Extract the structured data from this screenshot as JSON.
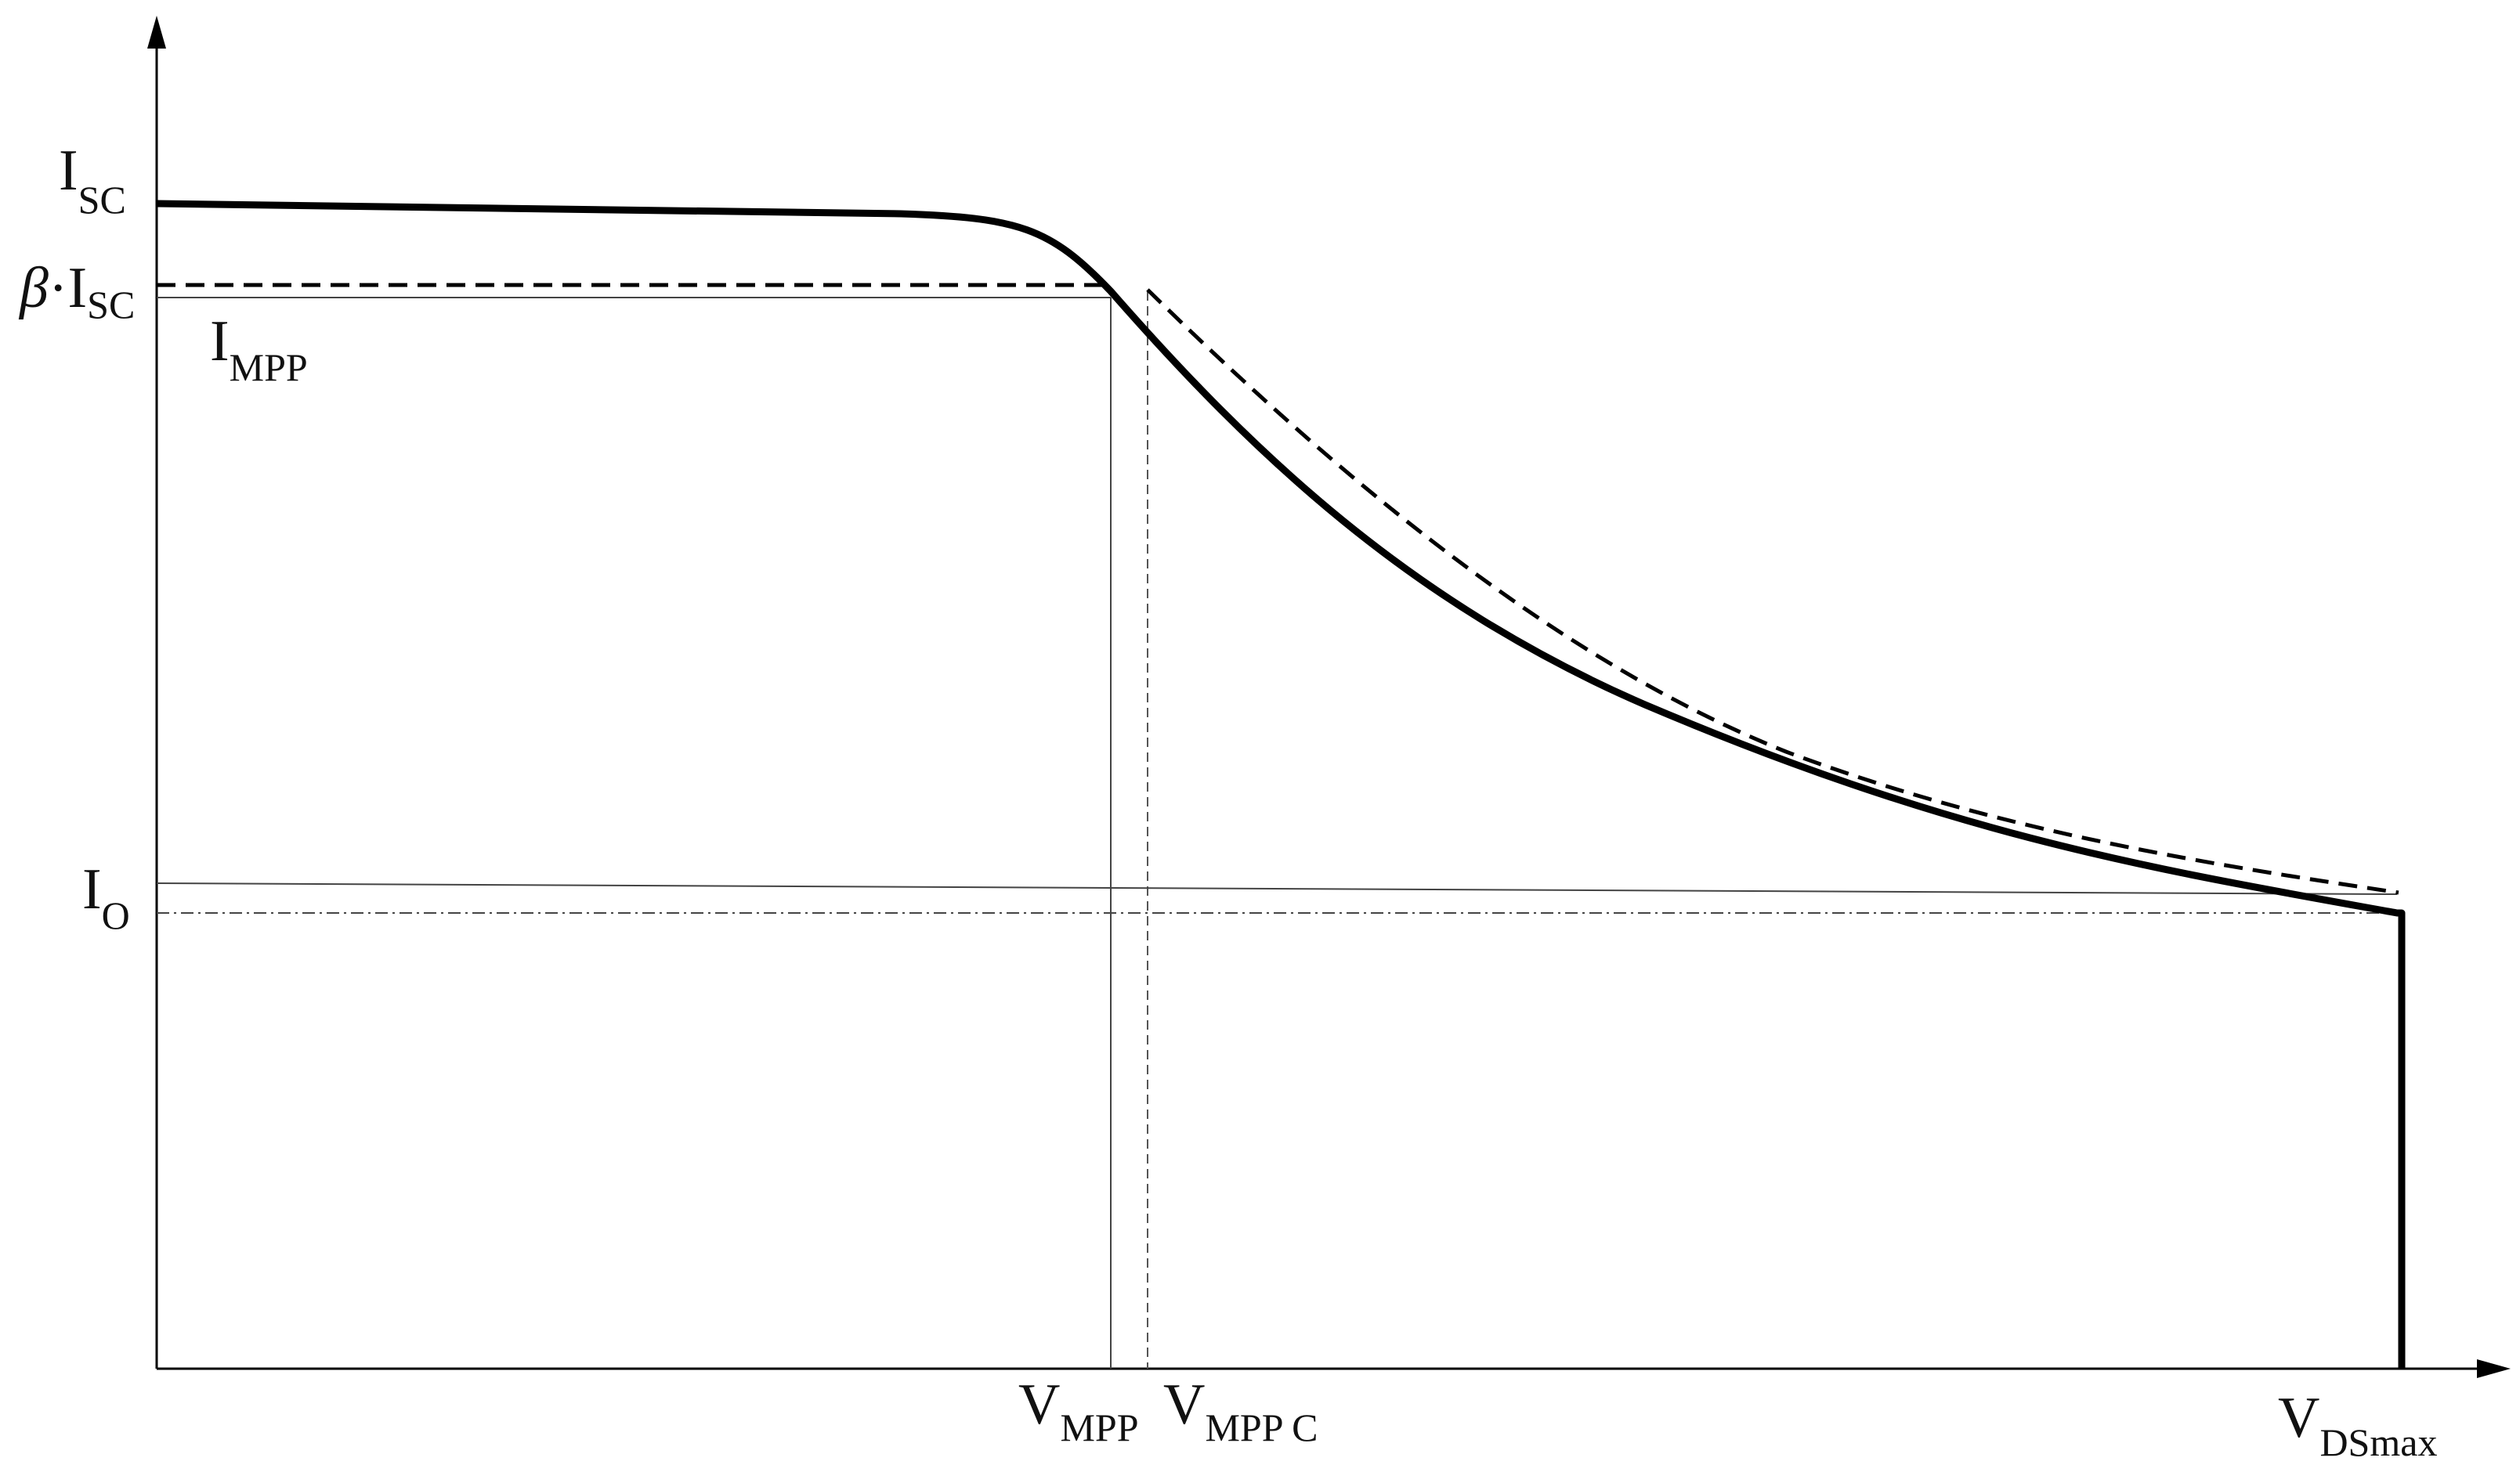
{
  "labels": {
    "isc": {
      "main": "I",
      "sub": "SC"
    },
    "beta_isc": {
      "beta": "β",
      "dot": "·",
      "main": "I",
      "sub": "SC"
    },
    "impp": {
      "main": "I",
      "sub": "MPP"
    },
    "io": {
      "main": "I",
      "sub": "O"
    },
    "vmpp": {
      "main": "V",
      "sub": "MPP"
    },
    "vmppc": {
      "main": "V",
      "sub": "MPP C"
    },
    "vdsmax": {
      "main": "V",
      "sub": "DSmax"
    }
  },
  "colors": {
    "curve": "#000000",
    "guide": "#444444",
    "background": "#ffffff"
  }
}
